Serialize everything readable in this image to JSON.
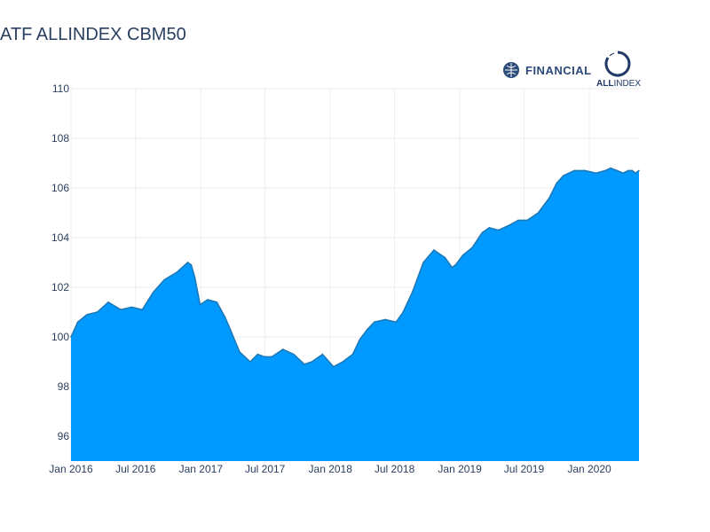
{
  "header": {
    "title": "ATF ALLINDEX CBM50",
    "logo_financial_text": "FINANCIAL",
    "logo_allindex_bold": "ALL",
    "logo_allindex_rest": "INDEX"
  },
  "colors": {
    "fill": "#0099ff",
    "line": "#1f77b4",
    "grid": "#eeeeee",
    "text": "#2a3f5f"
  },
  "chart_data": {
    "type": "area",
    "title": "ATF ALLINDEX CBM50",
    "xlabel": "",
    "ylabel": "",
    "ylim": [
      95,
      110
    ],
    "xlim": [
      "2016-01-01",
      "2020-05-20"
    ],
    "grid": true,
    "x_ticks": [
      "Jan 2016",
      "Jul 2016",
      "Jan 2017",
      "Jul 2017",
      "Jan 2018",
      "Jul 2018",
      "Jan 2019",
      "Jul 2019",
      "Jan 2020"
    ],
    "y_ticks": [
      96,
      98,
      100,
      102,
      104,
      106,
      108,
      110
    ],
    "series": [
      {
        "x": [
          "2016-01-01",
          "2016-01-20",
          "2016-02-15",
          "2016-03-15",
          "2016-04-15",
          "2016-05-20",
          "2016-06-20",
          "2016-07-20",
          "2016-08-20",
          "2016-09-20",
          "2016-10-25",
          "2016-11-25",
          "2016-12-05",
          "2016-12-15",
          "2016-12-30",
          "2017-01-20",
          "2017-02-15",
          "2017-03-10",
          "2017-03-25",
          "2017-04-20",
          "2017-05-20",
          "2017-06-10",
          "2017-06-30",
          "2017-07-20",
          "2017-08-20",
          "2017-09-20",
          "2017-10-20",
          "2017-11-10",
          "2017-12-10",
          "2018-01-10",
          "2018-02-05",
          "2018-03-05",
          "2018-03-25",
          "2018-04-15",
          "2018-05-05",
          "2018-06-05",
          "2018-07-05",
          "2018-07-25",
          "2018-08-20",
          "2018-09-20",
          "2018-10-20",
          "2018-11-20",
          "2018-12-10",
          "2018-12-20",
          "2019-01-10",
          "2019-02-05",
          "2019-03-05",
          "2019-03-25",
          "2019-04-20",
          "2019-05-20",
          "2019-06-15",
          "2019-07-10",
          "2019-08-10",
          "2019-09-10",
          "2019-10-01",
          "2019-10-20",
          "2019-11-20",
          "2019-12-20",
          "2020-01-20",
          "2020-02-15",
          "2020-03-01",
          "2020-03-20",
          "2020-04-05",
          "2020-04-20",
          "2020-05-01",
          "2020-05-10",
          "2020-05-20"
        ],
        "y": [
          100.0,
          100.6,
          100.9,
          101.0,
          101.4,
          101.1,
          101.2,
          101.1,
          101.8,
          102.3,
          102.6,
          103.0,
          102.9,
          102.4,
          101.3,
          101.5,
          101.4,
          100.8,
          100.3,
          99.4,
          99.0,
          99.3,
          99.2,
          99.2,
          99.5,
          99.3,
          98.9,
          99.0,
          99.3,
          98.8,
          99.0,
          99.3,
          99.9,
          100.3,
          100.6,
          100.7,
          100.6,
          101.0,
          101.8,
          103.0,
          103.5,
          103.2,
          102.8,
          102.9,
          103.3,
          103.6,
          104.2,
          104.4,
          104.3,
          104.5,
          104.7,
          104.7,
          105.0,
          105.6,
          106.2,
          106.5,
          106.7,
          106.7,
          106.6,
          106.7,
          106.8,
          106.7,
          106.6,
          106.7,
          106.7,
          106.6,
          106.7
        ]
      }
    ]
  }
}
